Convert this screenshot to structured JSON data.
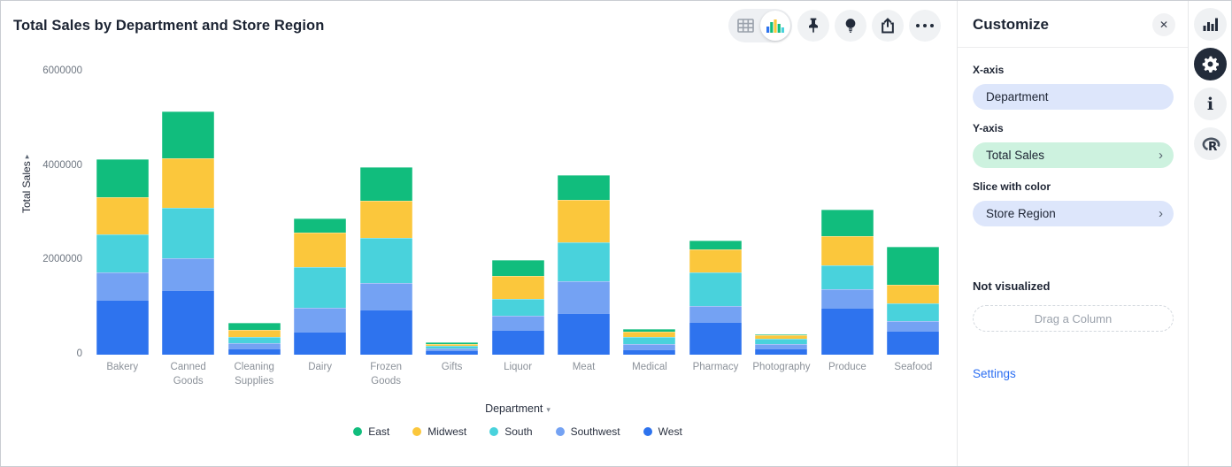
{
  "header": {
    "title": "Total Sales by Department and Store Region",
    "toolbar_icons": [
      "table-view-icon",
      "chart-view-icon",
      "pin-icon",
      "lightbulb-icon",
      "share-icon",
      "more-icon"
    ],
    "view_toggle_selected": "chart"
  },
  "panel": {
    "title": "Customize",
    "close_icon": "close-icon",
    "fields": [
      {
        "label": "X-axis",
        "value": "Department",
        "pill_color": "#dde6fb",
        "chevron": false
      },
      {
        "label": "Y-axis",
        "value": "Total Sales",
        "pill_color": "#cdf2df",
        "chevron": true
      },
      {
        "label": "Slice with color",
        "value": "Store Region",
        "pill_color": "#dde6fb",
        "chevron": true
      }
    ],
    "not_visualized_label": "Not visualized",
    "drop_zone_label": "Drag a Column",
    "settings_label": "Settings"
  },
  "rail_icons": [
    "bar-chart-icon",
    "gear-icon",
    "info-icon",
    "r-logo-icon"
  ],
  "chart_data": {
    "type": "bar",
    "stacked": true,
    "title": "Total Sales by Department and Store Region",
    "xlabel": "Department",
    "ylabel": "Total Sales",
    "ylim": [
      0,
      6000000
    ],
    "yticks": [
      0,
      2000000,
      4000000,
      6000000
    ],
    "grid": false,
    "legend_position": "bottom",
    "categories": [
      "Bakery",
      "Canned Goods",
      "Cleaning Supplies",
      "Dairy",
      "Frozen Goods",
      "Gifts",
      "Liquor",
      "Meat",
      "Medical",
      "Pharmacy",
      "Photography",
      "Produce",
      "Seafood"
    ],
    "series": [
      {
        "name": "West",
        "color": "#2e73ee",
        "values": [
          1160000,
          1370000,
          135000,
          480000,
          950000,
          90000,
          520000,
          890000,
          110000,
          690000,
          125000,
          1000000,
          500000
        ]
      },
      {
        "name": "Southwest",
        "color": "#74a2f3",
        "values": [
          590000,
          670000,
          110000,
          520000,
          570000,
          50000,
          310000,
          670000,
          110000,
          340000,
          100000,
          390000,
          220000
        ]
      },
      {
        "name": "South",
        "color": "#49d2dc",
        "values": [
          800000,
          1080000,
          130000,
          850000,
          960000,
          55000,
          360000,
          820000,
          150000,
          720000,
          110000,
          500000,
          360000
        ]
      },
      {
        "name": "Midwest",
        "color": "#fbc73c",
        "values": [
          790000,
          1040000,
          150000,
          730000,
          790000,
          40000,
          480000,
          900000,
          110000,
          480000,
          75000,
          620000,
          410000
        ]
      },
      {
        "name": "East",
        "color": "#11bd7d",
        "values": [
          800000,
          990000,
          150000,
          310000,
          710000,
          25000,
          330000,
          530000,
          60000,
          190000,
          30000,
          560000,
          800000
        ]
      }
    ],
    "stack_order_bottom_to_top": [
      "West",
      "Southwest",
      "South",
      "Midwest",
      "East"
    ],
    "legend": [
      {
        "label": "East",
        "color": "#11bd7d"
      },
      {
        "label": "Midwest",
        "color": "#fbc73c"
      },
      {
        "label": "South",
        "color": "#49d2dc"
      },
      {
        "label": "Southwest",
        "color": "#74a2f3"
      },
      {
        "label": "West",
        "color": "#2e73ee"
      }
    ]
  }
}
